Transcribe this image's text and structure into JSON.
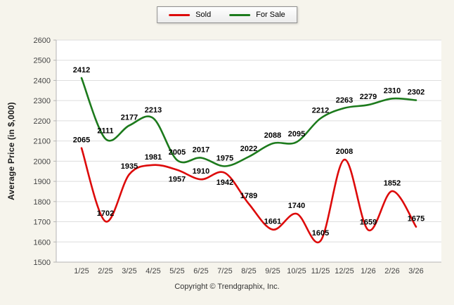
{
  "chart_data": {
    "type": "line",
    "categories": [
      "1/25",
      "2/25",
      "3/25",
      "4/25",
      "5/25",
      "6/25",
      "7/25",
      "8/25",
      "9/25",
      "10/25",
      "11/25",
      "12/25",
      "1/26",
      "2/26",
      "3/26"
    ],
    "series": [
      {
        "name": "Sold",
        "color": "#dd0a0a",
        "values": [
          2065,
          1702,
          1935,
          1981,
          1957,
          1910,
          1942,
          1789,
          1661,
          1740,
          1605,
          2008,
          1659,
          1852,
          1675
        ]
      },
      {
        "name": "For Sale",
        "color": "#1c7a1c",
        "values": [
          2412,
          2111,
          2177,
          2213,
          2005,
          2017,
          1975,
          2022,
          2088,
          2095,
          2212,
          2263,
          2279,
          2310,
          2302
        ]
      }
    ],
    "title": "",
    "xlabel": "",
    "ylabel": "Average Price (in $,000)",
    "ylim": [
      1500,
      2600
    ],
    "ytick_step": 100,
    "grid": true,
    "legend_position": "top-center",
    "label_color": "#000000",
    "tick_color": "#444444",
    "grid_color": "#dedede",
    "axis_color": "#b5b5b5",
    "plot_bg": "#ffffff"
  },
  "footer": {
    "copyright": "Copyright © Trendgraphix, Inc."
  }
}
